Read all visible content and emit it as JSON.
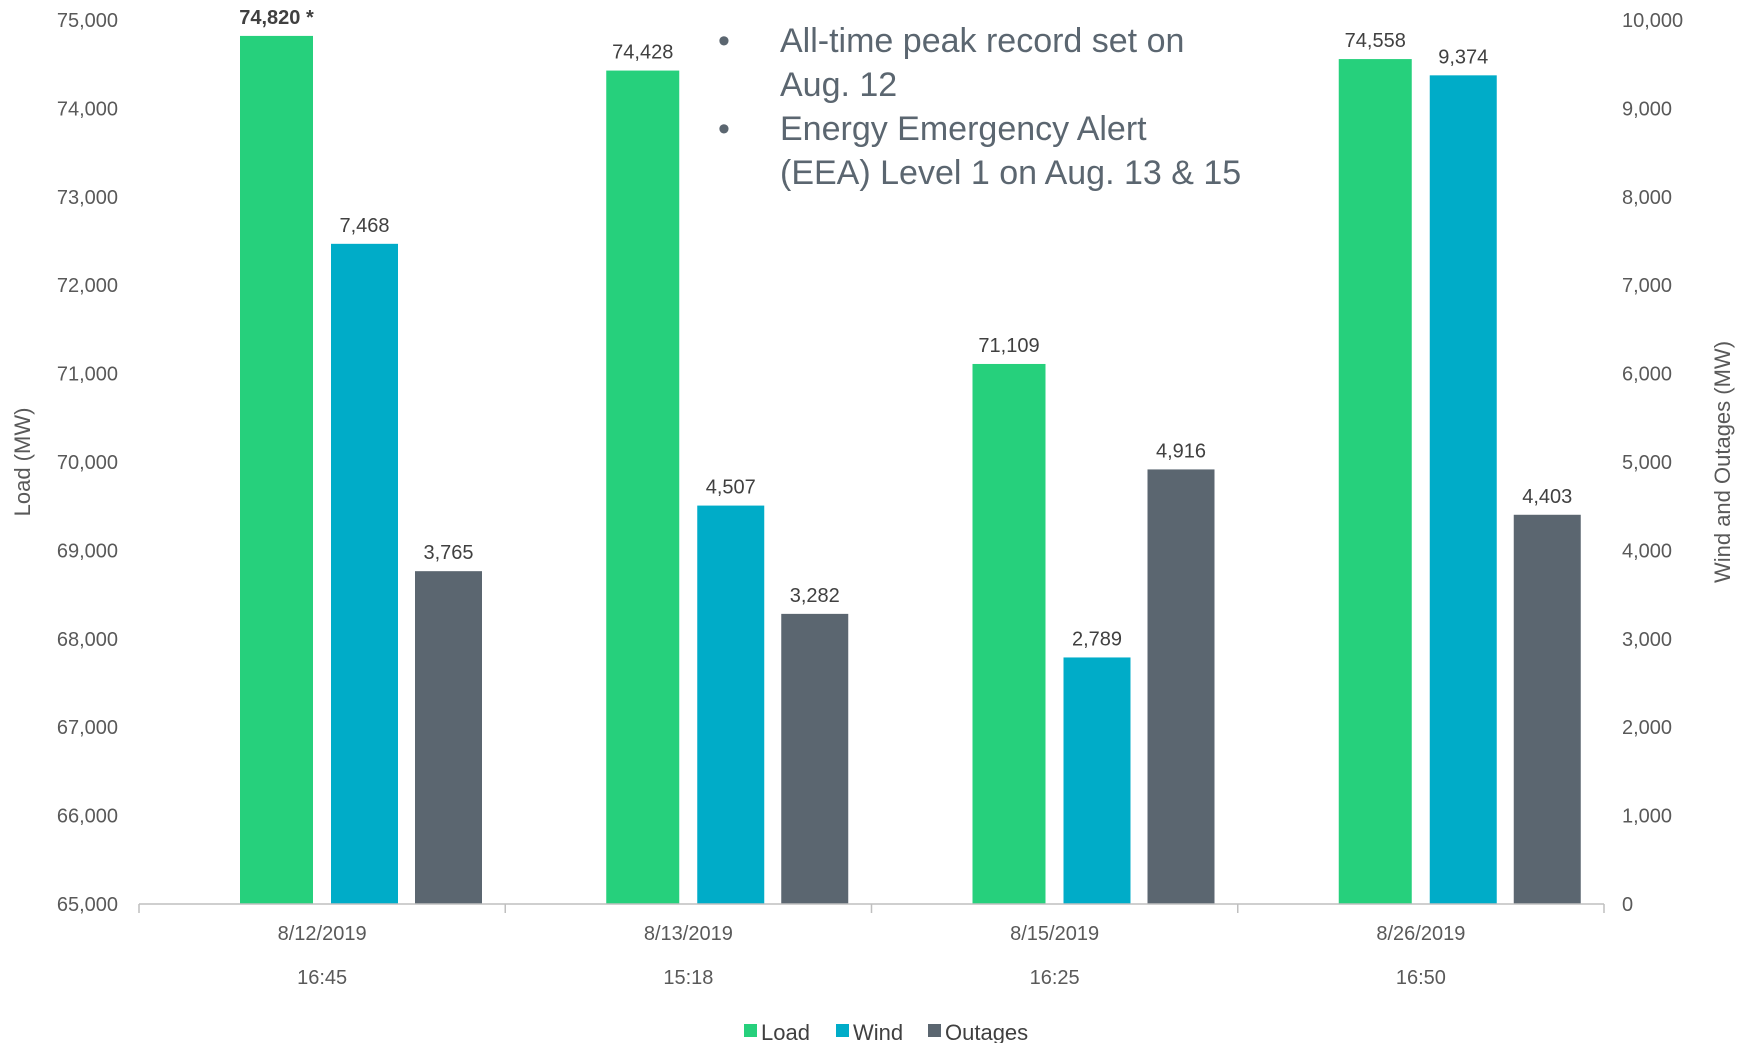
{
  "chart_data": {
    "type": "bar",
    "categories": [
      {
        "date": "8/12/2019",
        "time": "16:45"
      },
      {
        "date": "8/13/2019",
        "time": "15:18"
      },
      {
        "date": "8/15/2019",
        "time": "16:25"
      },
      {
        "date": "8/26/2019",
        "time": "16:50"
      }
    ],
    "series": [
      {
        "name": "Load",
        "axis": "left",
        "color": "#26d07c",
        "values": [
          74820,
          74428,
          71109,
          74558
        ],
        "labels": [
          "74,820 *",
          "74,428",
          "71,109",
          "74,558"
        ],
        "bold": [
          true,
          false,
          false,
          false
        ]
      },
      {
        "name": "Wind",
        "axis": "right",
        "color": "#00acc8",
        "values": [
          7468,
          4507,
          2789,
          9374
        ],
        "labels": [
          "7,468",
          "4,507",
          "2,789",
          "9,374"
        ],
        "bold": [
          false,
          false,
          false,
          false
        ]
      },
      {
        "name": "Outages",
        "axis": "right",
        "color": "#5b6670",
        "values": [
          3765,
          3282,
          4916,
          4403
        ],
        "labels": [
          "3,765",
          "3,282",
          "4,916",
          "4,403"
        ],
        "bold": [
          false,
          false,
          false,
          false
        ]
      }
    ],
    "y_left": {
      "label": "Load (MW)",
      "min": 65000,
      "max": 75000,
      "ticks": [
        "65,000",
        "66,000",
        "67,000",
        "68,000",
        "69,000",
        "70,000",
        "71,000",
        "72,000",
        "73,000",
        "74,000",
        "75,000"
      ]
    },
    "y_right": {
      "label": "Wind and Outages (MW)",
      "min": 0,
      "max": 10000,
      "ticks": [
        "0",
        "1,000",
        "2,000",
        "3,000",
        "4,000",
        "5,000",
        "6,000",
        "7,000",
        "8,000",
        "9,000",
        "10,000"
      ]
    },
    "legend": {
      "position": "bottom",
      "items": [
        "Load",
        "Wind",
        "Outages"
      ]
    },
    "annotations": [
      {
        "bullet": "•",
        "lines": [
          "All-time peak record set on",
          "Aug. 12"
        ]
      },
      {
        "bullet": "•",
        "lines": [
          "Energy Emergency Alert",
          "(EEA) Level 1 on Aug. 13 & 15"
        ]
      }
    ],
    "grid": false
  }
}
